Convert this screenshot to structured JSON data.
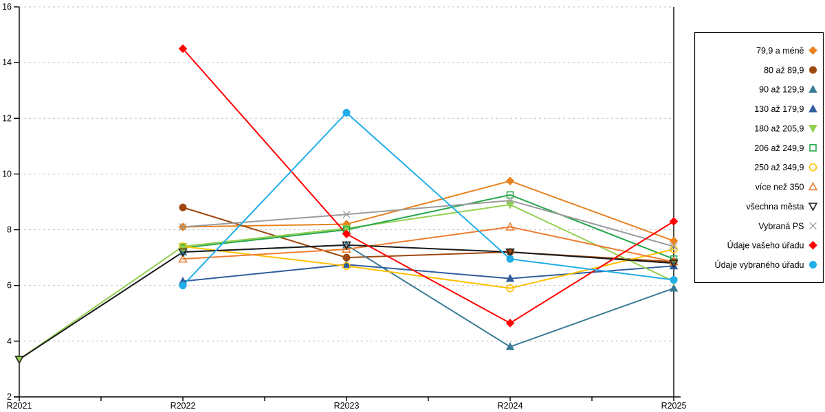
{
  "chart_data": {
    "type": "line",
    "title": "",
    "xlabel": "",
    "ylabel": "",
    "x": [
      "R2021",
      "R2022",
      "R2023",
      "R2024",
      "R2025"
    ],
    "ylim": [
      2,
      16
    ],
    "yticks": [
      2,
      4,
      6,
      8,
      10,
      12,
      14,
      16
    ],
    "grid": "horizontal-dashed",
    "grid_color": "#c0c0c0",
    "axis_color": "#000000",
    "legend_position": "right",
    "series": [
      {
        "name": "79,9 a méně",
        "color": "#E8821E",
        "marker": "diamond",
        "filled": true,
        "values": [
          null,
          8.1,
          8.2,
          9.75,
          7.6
        ]
      },
      {
        "name": "80 až 89,9",
        "color": "#9E480E",
        "marker": "circle",
        "filled": true,
        "values": [
          null,
          8.8,
          7.0,
          7.2,
          6.85
        ]
      },
      {
        "name": "90 až 129,9",
        "color": "#3A7C96",
        "marker": "triangle-up",
        "filled": true,
        "values": [
          null,
          7.2,
          7.45,
          3.8,
          5.9
        ]
      },
      {
        "name": "130 až 179,9",
        "color": "#2F5D9E",
        "marker": "triangle-up",
        "filled": true,
        "values": [
          null,
          6.15,
          6.75,
          6.25,
          6.7
        ]
      },
      {
        "name": "180 až 205,9",
        "color": "#92D050",
        "marker": "triangle-down",
        "filled": true,
        "values": [
          3.35,
          7.4,
          8.05,
          8.9,
          6.15
        ]
      },
      {
        "name": "206 až 249,9",
        "color": "#27A84C",
        "marker": "square",
        "filled": false,
        "values": [
          null,
          7.35,
          8.0,
          9.25,
          6.95
        ]
      },
      {
        "name": "250 až 349,9",
        "color": "#FFC000",
        "marker": "circle",
        "filled": false,
        "values": [
          null,
          7.4,
          6.7,
          5.9,
          7.3
        ]
      },
      {
        "name": "více než 350",
        "color": "#ED7D31",
        "marker": "triangle-up",
        "filled": false,
        "values": [
          null,
          6.95,
          7.3,
          8.1,
          6.85
        ]
      },
      {
        "name": "všechna města",
        "color": "#1A1A1A",
        "marker": "triangle-down",
        "filled": false,
        "values": [
          3.35,
          7.2,
          7.45,
          7.2,
          6.8
        ]
      },
      {
        "name": "Vybraná PS",
        "color": "#9B9B9B",
        "marker": "x",
        "filled": false,
        "values": [
          null,
          8.1,
          8.55,
          9.05,
          7.4
        ]
      },
      {
        "name": "Údaje vašeho úřadu",
        "color": "#FF0000",
        "marker": "diamond",
        "filled": true,
        "values": [
          null,
          14.5,
          7.85,
          4.65,
          8.3
        ]
      },
      {
        "name": "Údaje vybraného úřadu",
        "color": "#1FAEE9",
        "marker": "circle",
        "filled": true,
        "values": [
          null,
          6.0,
          12.2,
          6.95,
          6.2
        ]
      }
    ]
  }
}
